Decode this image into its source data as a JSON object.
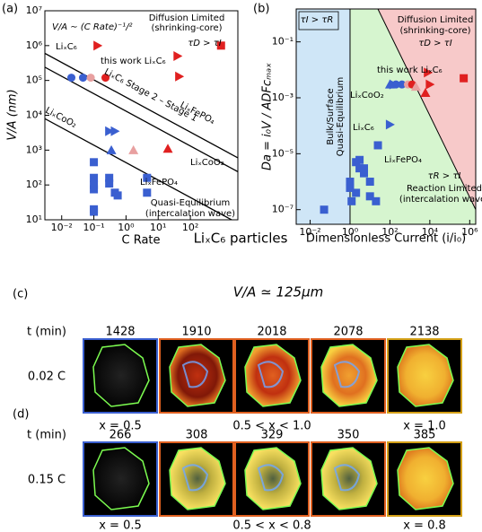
{
  "chart_data": [
    {
      "type": "scatter",
      "panel_label": "(a)",
      "xlabel": "C Rate",
      "ylabel": "V/A (nm)",
      "log_x": true,
      "log_y": true,
      "xlim": [
        0.003,
        3000
      ],
      "ylim": [
        10,
        10000000
      ],
      "xticks": [
        {
          "value": 0.01,
          "label": "10⁻²"
        },
        {
          "value": 0.1,
          "label": "10⁻¹"
        },
        {
          "value": 1,
          "label": "10⁰"
        },
        {
          "value": 10,
          "label": "10¹"
        },
        {
          "value": 100,
          "label": "10²"
        }
      ],
      "yticks": [
        {
          "value": 10,
          "label": "10¹"
        },
        {
          "value": 100,
          "label": "10²"
        },
        {
          "value": 1000,
          "label": "10³"
        },
        {
          "value": 10000,
          "label": "10⁴"
        },
        {
          "value": 100000,
          "label": "10⁵"
        },
        {
          "value": 1000000,
          "label": "10⁶"
        },
        {
          "value": 10000000,
          "label": "10⁷"
        }
      ],
      "series": [
        {
          "color": "#3a5fd0",
          "marker": "circle",
          "x": [
            0.02,
            0.046
          ],
          "y": [
            120000,
            120000
          ]
        },
        {
          "color": "#e8a0a0",
          "marker": "circle",
          "x": [
            0.08
          ],
          "y": [
            120000
          ]
        },
        {
          "color": "#e02020",
          "marker": "circle",
          "x": [
            0.23
          ],
          "y": [
            120000
          ]
        },
        {
          "color": "#e02020",
          "marker": "triangle-right",
          "x": [
            0.13,
            40,
            45
          ],
          "y": [
            1000000,
            500000,
            130000
          ]
        },
        {
          "color": "#e02020",
          "marker": "triangle-up",
          "x": [
            20
          ],
          "y": [
            1100
          ]
        },
        {
          "color": "#e02020",
          "marker": "square",
          "x": [
            900
          ],
          "y": [
            1000000
          ]
        },
        {
          "color": "#e8a0a0",
          "marker": "triangle-up",
          "x": [
            1.7
          ],
          "y": [
            1000
          ]
        },
        {
          "color": "#3a5fd0",
          "marker": "triangle-right",
          "x": [
            0.3,
            0.45
          ],
          "y": [
            3500,
            3500
          ]
        },
        {
          "color": "#3a5fd0",
          "marker": "triangle-up",
          "x": [
            0.35
          ],
          "y": [
            1000
          ]
        },
        {
          "color": "#3a5fd0",
          "marker": "square",
          "x": [
            0.1,
            0.1,
            0.1,
            0.1,
            0.3,
            0.3,
            0.45,
            0.55,
            4.5,
            4.5,
            0.1,
            0.1
          ],
          "y": [
            450,
            160,
            100,
            75,
            160,
            110,
            60,
            50,
            160,
            60,
            20,
            17
          ]
        }
      ],
      "fit_lines": [
        {
          "x": [
            0.003,
            3000
          ],
          "y": [
            600000,
            600
          ]
        },
        {
          "x": [
            0.003,
            3000
          ],
          "y": [
            240000,
            240
          ]
        },
        {
          "x": [
            0.003,
            3000
          ],
          "y": [
            8000,
            8
          ]
        }
      ],
      "annotations": [
        {
          "text": "V/A ∼ (C Rate)⁻¹/²",
          "color": "#000"
        },
        {
          "text": "Diffusion Limited",
          "color": "#e02020"
        },
        {
          "text": "(shrinking-core)",
          "color": "#e02020"
        },
        {
          "text": "τD > τI",
          "color": "#e02020"
        },
        {
          "text": "this work LiₓC₆",
          "color": "#000"
        },
        {
          "text": "LiₓC₆",
          "color": "#000"
        },
        {
          "text": "LiₓFePO₄",
          "color": "#000"
        },
        {
          "text": "LiₓC₆ Stage 2 – Stage 1",
          "color": "#000"
        },
        {
          "text": "LiₓCoO₂",
          "color": "#000"
        },
        {
          "text": "LiₓCoO₂",
          "color": "#000"
        },
        {
          "text": "LiₓFePO₄",
          "color": "#000"
        },
        {
          "text": "Quasi-Equilibrium",
          "color": "#3a5fd0"
        },
        {
          "text": "(intercalation wave)",
          "color": "#3a5fd0"
        }
      ]
    },
    {
      "type": "scatter",
      "panel_label": "(b)",
      "xlabel": "Dimensionless Current (i/i₀)",
      "ylabel": "Da = i₀V / ADFcₘₐₓ",
      "log_x": true,
      "log_y": true,
      "xlim": [
        0.002,
        2000000
      ],
      "ylim": [
        3e-08,
        1.5
      ],
      "xticks": [
        {
          "value": 0.01,
          "label": "10⁻²"
        },
        {
          "value": 1,
          "label": "10⁰"
        },
        {
          "value": 100,
          "label": "10²"
        },
        {
          "value": 10000,
          "label": "10⁴"
        },
        {
          "value": 1000000,
          "label": "10⁶"
        }
      ],
      "yticks": [
        {
          "value": 0.1,
          "label": "10⁻¹"
        },
        {
          "value": 0.001,
          "label": "10⁻³"
        },
        {
          "value": 1e-05,
          "label": "10⁻⁵"
        },
        {
          "value": 1e-07,
          "label": "10⁻⁷"
        }
      ],
      "boundary_x": 1,
      "boundary_diagonal": {
        "x": [
          25,
          2000000
        ],
        "y": [
          1.5,
          1e-07
        ]
      },
      "region_colors": [
        "#cfe6f7",
        "#d6f5cf",
        "#f7c9c9"
      ],
      "series": [
        {
          "color": "#3a5fd0",
          "marker": "circle",
          "x": [
            200,
            400
          ],
          "y": [
            0.003,
            0.003
          ]
        },
        {
          "color": "#e8a0a0",
          "marker": "circle",
          "x": [
            800
          ],
          "y": [
            0.003
          ]
        },
        {
          "color": "#e02020",
          "marker": "circle",
          "x": [
            1300
          ],
          "y": [
            0.003
          ]
        },
        {
          "color": "#e02020",
          "marker": "triangle-right",
          "x": [
            8000,
            10000
          ],
          "y": [
            0.008,
            0.003
          ]
        },
        {
          "color": "#e02020",
          "marker": "triangle-up",
          "x": [
            6000
          ],
          "y": [
            0.0015
          ]
        },
        {
          "color": "#e02020",
          "marker": "square",
          "x": [
            500000
          ],
          "y": [
            0.005
          ]
        },
        {
          "color": "#e8a0a0",
          "marker": "triangle-up",
          "x": [
            2000
          ],
          "y": [
            0.0025
          ]
        },
        {
          "color": "#3a5fd0",
          "marker": "triangle-right",
          "x": [
            100,
            150
          ],
          "y": [
            0.00011,
            0.003
          ]
        },
        {
          "color": "#3a5fd0",
          "marker": "triangle-up",
          "x": [
            100
          ],
          "y": [
            0.003
          ]
        },
        {
          "color": "#3a5fd0",
          "marker": "square",
          "x": [
            0.05,
            1,
            1,
            2,
            3,
            5,
            5,
            10,
            10,
            20,
            25,
            1.2,
            2,
            3
          ],
          "y": [
            1e-07,
            1e-06,
            6e-07,
            5e-06,
            3e-06,
            3e-06,
            2e-06,
            1e-06,
            3e-07,
            2e-07,
            2e-05,
            2e-07,
            4e-07,
            6e-06
          ]
        }
      ],
      "annotations": [
        {
          "text": "τI > τR",
          "color": "#000"
        },
        {
          "text": "Diffusion Limited",
          "color": "#e02020"
        },
        {
          "text": "(shrinking-core)",
          "color": "#e02020"
        },
        {
          "text": "τD > τI",
          "color": "#000"
        },
        {
          "text": "this work LiₓC₆",
          "color": "#000"
        },
        {
          "text": "LiₓCoO₂",
          "color": "#000"
        },
        {
          "text": "LiₓC₆",
          "color": "#000"
        },
        {
          "text": "LiₓFePO₄",
          "color": "#000"
        },
        {
          "text": "Bulk/Surface",
          "color": "#3a5fd0"
        },
        {
          "text": "Quasi-Equilibrium",
          "color": "#3a5fd0"
        },
        {
          "text": "τR > τI",
          "color": "#000"
        },
        {
          "text": "Reaction Limited",
          "color": "#2ca02c"
        },
        {
          "text": "(intercalation wave)",
          "color": "#2ca02c"
        }
      ]
    }
  ],
  "figure": {
    "title": "LiₓC₆ particles",
    "title_color": "#5aa8e8",
    "rows": [
      {
        "label": "(c)",
        "heading": "V/A ≃ 125μm",
        "time_label": "t (min)",
        "rate": "0.02 C",
        "rate_color": "#3a5fd0",
        "times": [
          1428,
          1910,
          2018,
          2078,
          2138
        ],
        "frame_colors": [
          "#3a5fd0",
          "#e06020",
          "#e06020",
          "#e06020",
          "#d4a017"
        ],
        "captions": [
          {
            "text": "x = 0.5",
            "color": "#3a5fd0"
          },
          {
            "text": "0.5 < x < 1.0",
            "color": "#f08020"
          },
          {
            "text": "x = 1.0",
            "color": "#d4a017"
          }
        ]
      },
      {
        "label": "(d)",
        "time_label": "t (min)",
        "rate": "0.15 C",
        "rate_color": "#e02020",
        "times": [
          266,
          308,
          329,
          350,
          385
        ],
        "frame_colors": [
          "#3a5fd0",
          "#e06020",
          "#e06020",
          "#e06020",
          "#d4a017"
        ],
        "captions": [
          {
            "text": "x = 0.5",
            "color": "#3a5fd0"
          },
          {
            "text": "0.5 < x < 0.8",
            "color": "#f08020"
          },
          {
            "text": "x = 0.8",
            "color": "#d4a017"
          }
        ]
      }
    ]
  }
}
